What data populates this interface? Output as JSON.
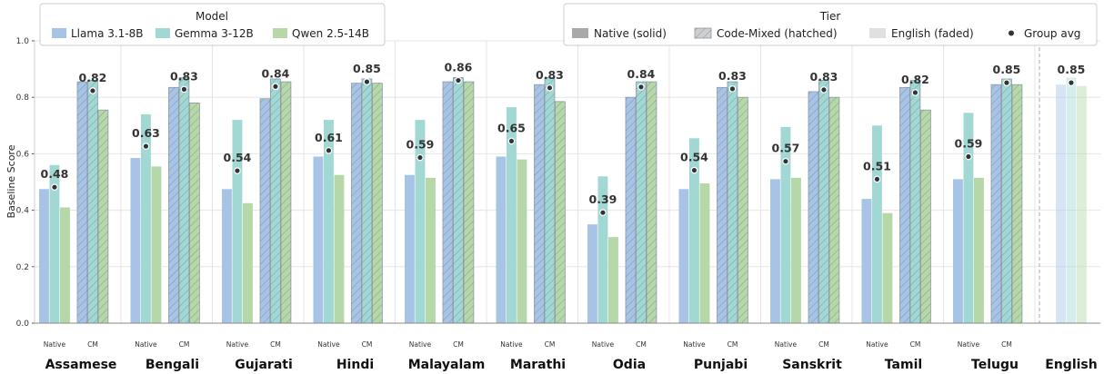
{
  "chart_data": {
    "type": "bar",
    "ylabel": "Baseline Score",
    "ylim": [
      0,
      1.0
    ],
    "yticks": [
      "0.0",
      "0.2",
      "0.4",
      "0.6",
      "0.8",
      "1.0"
    ],
    "grid": true,
    "models": [
      {
        "name": "Llama 3.1-8B",
        "color": "#a7c4e6"
      },
      {
        "name": "Gemma 3-12B",
        "color": "#a2d8d4"
      },
      {
        "name": "Qwen 2.5-14B",
        "color": "#b6d7a8"
      }
    ],
    "legend_model": {
      "title": "Model",
      "placement": "top-left"
    },
    "legend_tier": {
      "title": "Tier",
      "placement": "top-right",
      "items": [
        "Native (solid)",
        "Code-Mixed (hatched)",
        "English (faded)",
        "Group avg"
      ]
    },
    "tier_labels": {
      "native": "Native",
      "cm": "CM"
    },
    "languages": [
      {
        "name": "Assamese",
        "native": [
          0.475,
          0.56,
          0.41
        ],
        "native_avg": "0.48",
        "cm": [
          0.855,
          0.86,
          0.755
        ],
        "cm_avg": "0.82"
      },
      {
        "name": "Bengali",
        "native": [
          0.585,
          0.74,
          0.555
        ],
        "native_avg": "0.63",
        "cm": [
          0.835,
          0.87,
          0.78
        ],
        "cm_avg": "0.83"
      },
      {
        "name": "Gujarati",
        "native": [
          0.475,
          0.72,
          0.425
        ],
        "native_avg": "0.54",
        "cm": [
          0.795,
          0.865,
          0.855
        ],
        "cm_avg": "0.84"
      },
      {
        "name": "Hindi",
        "native": [
          0.59,
          0.72,
          0.525
        ],
        "native_avg": "0.61",
        "cm": [
          0.85,
          0.865,
          0.85
        ],
        "cm_avg": "0.85"
      },
      {
        "name": "Malayalam",
        "native": [
          0.525,
          0.72,
          0.515
        ],
        "native_avg": "0.59",
        "cm": [
          0.855,
          0.87,
          0.855
        ],
        "cm_avg": "0.86"
      },
      {
        "name": "Marathi",
        "native": [
          0.59,
          0.765,
          0.58
        ],
        "native_avg": "0.65",
        "cm": [
          0.845,
          0.87,
          0.785
        ],
        "cm_avg": "0.83"
      },
      {
        "name": "Odia",
        "native": [
          0.35,
          0.52,
          0.305
        ],
        "native_avg": "0.39",
        "cm": [
          0.8,
          0.855,
          0.855
        ],
        "cm_avg": "0.84"
      },
      {
        "name": "Punjabi",
        "native": [
          0.475,
          0.655,
          0.495
        ],
        "native_avg": "0.54",
        "cm": [
          0.835,
          0.855,
          0.8
        ],
        "cm_avg": "0.83"
      },
      {
        "name": "Sanskrit",
        "native": [
          0.51,
          0.695,
          0.515
        ],
        "native_avg": "0.57",
        "cm": [
          0.82,
          0.86,
          0.8
        ],
        "cm_avg": "0.83"
      },
      {
        "name": "Tamil",
        "native": [
          0.44,
          0.7,
          0.39
        ],
        "native_avg": "0.51",
        "cm": [
          0.835,
          0.86,
          0.755
        ],
        "cm_avg": "0.82"
      },
      {
        "name": "Telugu",
        "native": [
          0.51,
          0.745,
          0.515
        ],
        "native_avg": "0.59",
        "cm": [
          0.845,
          0.865,
          0.845
        ],
        "cm_avg": "0.85"
      }
    ],
    "english": {
      "name": "English",
      "values": [
        0.845,
        0.87,
        0.84
      ],
      "avg": "0.85"
    }
  }
}
